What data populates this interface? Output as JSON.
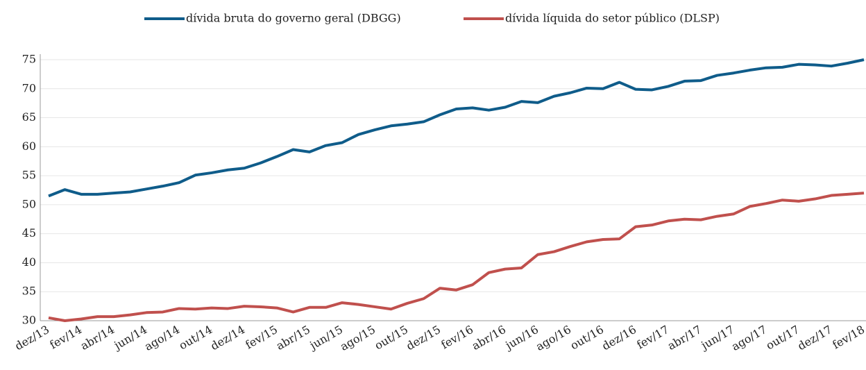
{
  "chart_data": {
    "type": "line",
    "categories": [
      "dez/13",
      null,
      "fev/14",
      null,
      "abr/14",
      null,
      "jun/14",
      null,
      "ago/14",
      null,
      "out/14",
      null,
      "dez/14",
      null,
      "fev/15",
      null,
      "abr/15",
      null,
      "jun/15",
      null,
      "ago/15",
      null,
      "out/15",
      null,
      "dez/15",
      null,
      "fev/16",
      null,
      "abr/16",
      null,
      "jun/16",
      null,
      "ago/16",
      null,
      "out/16",
      null,
      "dez/16",
      null,
      "fev/17",
      null,
      "abr/17",
      null,
      "jun/17",
      null,
      "ago/17",
      null,
      "out/17",
      null,
      "dez/17",
      null,
      "fev/18"
    ],
    "series": [
      {
        "name": "dívida bruta do governo geral (DBGG)",
        "color": "#0f5c8a",
        "values": [
          51.5,
          52.6,
          51.8,
          51.8,
          52.0,
          52.2,
          52.7,
          53.2,
          53.8,
          55.1,
          55.5,
          56.0,
          56.3,
          57.2,
          58.3,
          59.5,
          59.1,
          60.2,
          60.7,
          62.1,
          62.9,
          63.6,
          63.9,
          64.3,
          65.5,
          66.5,
          66.7,
          66.3,
          66.8,
          67.8,
          67.6,
          68.7,
          69.3,
          70.1,
          70.0,
          71.1,
          69.9,
          69.8,
          70.4,
          71.3,
          71.4,
          72.3,
          72.7,
          73.2,
          73.6,
          73.7,
          74.2,
          74.1,
          73.9,
          74.4,
          75.0
        ]
      },
      {
        "name": "dívida líquida do setor público (DLSP)",
        "color": "#c0504d",
        "values": [
          30.5,
          30.0,
          30.3,
          30.7,
          30.7,
          31.0,
          31.4,
          31.5,
          32.1,
          32.0,
          32.2,
          32.1,
          32.5,
          32.4,
          32.2,
          31.5,
          32.3,
          32.3,
          33.1,
          32.8,
          32.4,
          32.0,
          33.0,
          33.8,
          35.6,
          35.3,
          36.2,
          38.3,
          38.9,
          39.1,
          41.4,
          41.9,
          42.8,
          43.6,
          44.0,
          44.1,
          46.2,
          46.5,
          47.2,
          47.5,
          47.4,
          48.0,
          48.4,
          49.7,
          50.2,
          50.8,
          50.6,
          51.0,
          51.6,
          51.8,
          52.0
        ]
      }
    ],
    "ylim": [
      30,
      75
    ],
    "yticks": [
      30,
      35,
      40,
      45,
      50,
      55,
      60,
      65,
      70,
      75
    ],
    "grid": true
  }
}
